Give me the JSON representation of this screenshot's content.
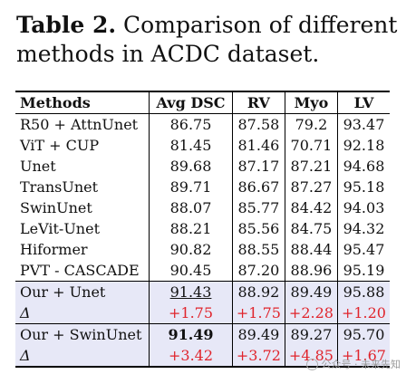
{
  "caption": {
    "label": "Table 2.",
    "text_line1": " Comparison of different",
    "text_line2": "methods in ACDC dataset."
  },
  "table": {
    "headers": [
      "Methods",
      "Avg DSC",
      "RV",
      "Myo",
      "LV"
    ],
    "rows": [
      [
        "R50 + AttnUnet",
        "86.75",
        "87.58",
        "79.2",
        "93.47"
      ],
      [
        "ViT + CUP",
        "81.45",
        "81.46",
        "70.71",
        "92.18"
      ],
      [
        "Unet",
        "89.68",
        "87.17",
        "87.21",
        "94.68"
      ],
      [
        "TransUnet",
        "89.71",
        "86.67",
        "87.27",
        "95.18"
      ],
      [
        "SwinUnet",
        "88.07",
        "85.77",
        "84.42",
        "94.03"
      ],
      [
        "LeVit-Unet",
        "88.21",
        "85.56",
        "84.75",
        "94.32"
      ],
      [
        "Hiformer",
        "90.82",
        "88.55",
        "88.44",
        "95.47"
      ],
      [
        "PVT - CASCADE",
        "90.45",
        "87.20",
        "88.96",
        "95.19"
      ]
    ],
    "ours": [
      {
        "row": [
          "Our + Unet",
          "91.43",
          "88.92",
          "89.49",
          "95.88"
        ],
        "delta": [
          "Δ",
          "+1.75",
          "+1.75",
          "+2.28",
          "+1.20"
        ]
      },
      {
        "row": [
          "Our + SwinUnet",
          "91.49",
          "89.49",
          "89.27",
          "95.70"
        ],
        "delta": [
          "Δ",
          "+3.42",
          "+3.72",
          "+4.85",
          "+1.67"
        ]
      }
    ]
  },
  "watermark": "公众号 · 未来先知"
}
